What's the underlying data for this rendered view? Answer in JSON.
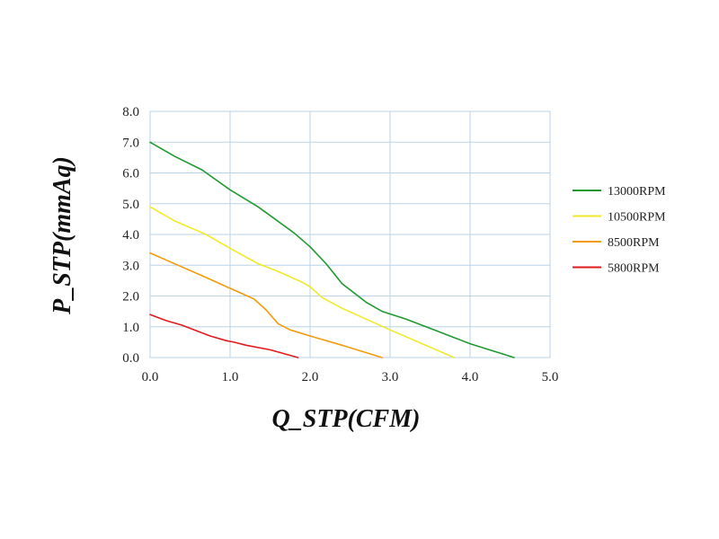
{
  "chart_data": {
    "type": "line",
    "xlabel": "Q_STP(CFM)",
    "ylabel": "P_STP(mmAq)",
    "xlim": [
      0,
      5
    ],
    "ylim": [
      0,
      8
    ],
    "xticks": [
      "0.0",
      "1.0",
      "2.0",
      "3.0",
      "4.0",
      "5.0"
    ],
    "yticks": [
      "0.0",
      "1.0",
      "2.0",
      "3.0",
      "4.0",
      "5.0",
      "6.0",
      "7.0",
      "8.0"
    ],
    "grid": true,
    "legend_position": "right",
    "series": [
      {
        "name": "13000RPM",
        "color": "#1f9a2e",
        "points": [
          [
            0.0,
            7.0
          ],
          [
            0.3,
            6.55
          ],
          [
            0.65,
            6.1
          ],
          [
            1.0,
            5.45
          ],
          [
            1.35,
            4.9
          ],
          [
            1.8,
            4.05
          ],
          [
            2.0,
            3.6
          ],
          [
            2.2,
            3.05
          ],
          [
            2.4,
            2.4
          ],
          [
            2.7,
            1.8
          ],
          [
            2.9,
            1.5
          ],
          [
            3.2,
            1.25
          ],
          [
            3.6,
            0.85
          ],
          [
            4.0,
            0.45
          ],
          [
            4.55,
            0.0
          ]
        ]
      },
      {
        "name": "10500RPM",
        "color": "#f0ea2a",
        "points": [
          [
            0.0,
            4.9
          ],
          [
            0.3,
            4.45
          ],
          [
            0.7,
            4.0
          ],
          [
            1.0,
            3.55
          ],
          [
            1.35,
            3.05
          ],
          [
            1.6,
            2.8
          ],
          [
            1.9,
            2.45
          ],
          [
            2.0,
            2.3
          ],
          [
            2.15,
            1.95
          ],
          [
            2.4,
            1.6
          ],
          [
            2.7,
            1.25
          ],
          [
            3.0,
            0.9
          ],
          [
            3.4,
            0.45
          ],
          [
            3.8,
            0.0
          ]
        ]
      },
      {
        "name": "8500RPM",
        "color": "#f59a0a",
        "points": [
          [
            0.0,
            3.4
          ],
          [
            0.35,
            3.0
          ],
          [
            0.7,
            2.6
          ],
          [
            1.0,
            2.25
          ],
          [
            1.3,
            1.9
          ],
          [
            1.45,
            1.55
          ],
          [
            1.6,
            1.1
          ],
          [
            1.75,
            0.9
          ],
          [
            2.0,
            0.7
          ],
          [
            2.4,
            0.4
          ],
          [
            2.9,
            0.0
          ]
        ]
      },
      {
        "name": "5800RPM",
        "color": "#e31a1c",
        "points": [
          [
            0.0,
            1.4
          ],
          [
            0.2,
            1.2
          ],
          [
            0.4,
            1.05
          ],
          [
            0.6,
            0.85
          ],
          [
            0.75,
            0.7
          ],
          [
            0.95,
            0.55
          ],
          [
            1.05,
            0.5
          ],
          [
            1.2,
            0.4
          ],
          [
            1.5,
            0.25
          ],
          [
            1.85,
            0.0
          ]
        ]
      }
    ]
  }
}
